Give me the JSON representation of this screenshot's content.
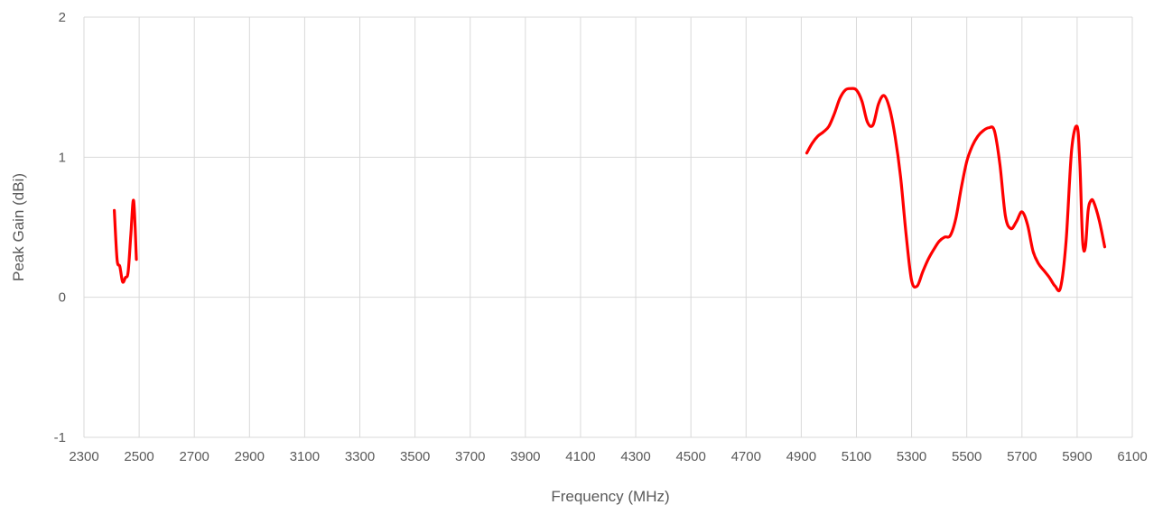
{
  "chart_data": {
    "type": "line",
    "xlabel": "Frequency (MHz)",
    "ylabel": "Peak Gain (dBi)",
    "xlim": [
      2300,
      6100
    ],
    "ylim": [
      -1,
      2
    ],
    "x_ticks": [
      2300,
      2500,
      2700,
      2900,
      3100,
      3300,
      3500,
      3700,
      3900,
      4100,
      4300,
      4500,
      4700,
      4900,
      5100,
      5300,
      5500,
      5700,
      5900,
      6100
    ],
    "y_ticks": [
      -1,
      0,
      1,
      2
    ],
    "x_tick_labels": [
      "2300",
      "2500",
      "2700",
      "2900",
      "3100",
      "3300",
      "3500",
      "3700",
      "3900",
      "4100",
      "4300",
      "4500",
      "4700",
      "4900",
      "5100",
      "5300",
      "5500",
      "5700",
      "5900",
      "6100"
    ],
    "y_tick_labels": [
      "-1",
      "0",
      "1",
      "2"
    ],
    "grid": true,
    "line_color": "#ff0000",
    "series": [
      {
        "segments": [
          [
            [
              2410,
              0.62
            ],
            [
              2420,
              0.27
            ],
            [
              2430,
              0.22
            ],
            [
              2440,
              0.11
            ],
            [
              2450,
              0.14
            ],
            [
              2460,
              0.18
            ],
            [
              2470,
              0.45
            ],
            [
              2480,
              0.69
            ],
            [
              2490,
              0.27
            ]
          ],
          [
            [
              4920,
              1.03
            ],
            [
              4940,
              1.1
            ],
            [
              4960,
              1.15
            ],
            [
              4980,
              1.18
            ],
            [
              5000,
              1.22
            ],
            [
              5020,
              1.31
            ],
            [
              5040,
              1.42
            ],
            [
              5060,
              1.48
            ],
            [
              5080,
              1.49
            ],
            [
              5100,
              1.48
            ],
            [
              5120,
              1.4
            ],
            [
              5140,
              1.25
            ],
            [
              5160,
              1.23
            ],
            [
              5180,
              1.38
            ],
            [
              5200,
              1.44
            ],
            [
              5220,
              1.35
            ],
            [
              5240,
              1.15
            ],
            [
              5260,
              0.86
            ],
            [
              5280,
              0.45
            ],
            [
              5300,
              0.12
            ],
            [
              5320,
              0.08
            ],
            [
              5340,
              0.18
            ],
            [
              5360,
              0.27
            ],
            [
              5380,
              0.34
            ],
            [
              5400,
              0.4
            ],
            [
              5420,
              0.43
            ],
            [
              5440,
              0.44
            ],
            [
              5460,
              0.56
            ],
            [
              5480,
              0.78
            ],
            [
              5500,
              0.97
            ],
            [
              5520,
              1.08
            ],
            [
              5540,
              1.15
            ],
            [
              5560,
              1.19
            ],
            [
              5580,
              1.21
            ],
            [
              5600,
              1.19
            ],
            [
              5620,
              0.95
            ],
            [
              5640,
              0.58
            ],
            [
              5660,
              0.49
            ],
            [
              5680,
              0.54
            ],
            [
              5700,
              0.61
            ],
            [
              5720,
              0.52
            ],
            [
              5740,
              0.33
            ],
            [
              5760,
              0.24
            ],
            [
              5780,
              0.19
            ],
            [
              5800,
              0.14
            ],
            [
              5820,
              0.08
            ],
            [
              5840,
              0.07
            ],
            [
              5860,
              0.4
            ],
            [
              5880,
              1.05
            ],
            [
              5900,
              1.22
            ],
            [
              5910,
              0.95
            ],
            [
              5920,
              0.4
            ],
            [
              5930,
              0.36
            ],
            [
              5940,
              0.62
            ],
            [
              5950,
              0.69
            ],
            [
              5960,
              0.68
            ],
            [
              5980,
              0.55
            ],
            [
              6000,
              0.36
            ]
          ]
        ]
      }
    ]
  }
}
